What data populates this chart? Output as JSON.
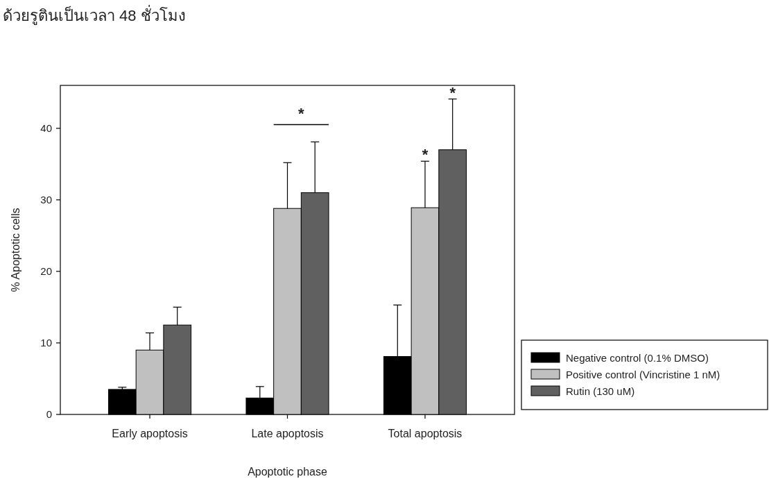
{
  "chart_data": {
    "type": "bar",
    "title": "ด้วยรูตินเป็นเวลา 48 ชั่วโมง",
    "xlabel": "Apoptotic phase",
    "ylabel": "% Apoptotic cells",
    "categories": [
      "Early apoptosis",
      "Late apoptosis",
      "Total apoptosis"
    ],
    "series": [
      {
        "name": "Negative control (0.1% DMSO)",
        "color": "#000000",
        "values": [
          3.5,
          2.3,
          8.1
        ],
        "errors": [
          0.3,
          1.6,
          7.2
        ]
      },
      {
        "name": "Positive control (Vincristine 1 nM)",
        "color": "#c0c0c0",
        "values": [
          9.0,
          28.8,
          28.9
        ],
        "errors": [
          2.4,
          6.4,
          6.5
        ]
      },
      {
        "name": "Rutin (130 uM)",
        "color": "#606060",
        "values": [
          12.5,
          31.0,
          37.0
        ],
        "errors": [
          2.5,
          7.1,
          7.1
        ]
      }
    ],
    "ylim": [
      0,
      46
    ],
    "yticks": [
      0,
      10,
      20,
      30,
      40
    ],
    "grid": false,
    "legend": "bottom right",
    "annotations": [
      "*",
      "*",
      "*"
    ]
  }
}
